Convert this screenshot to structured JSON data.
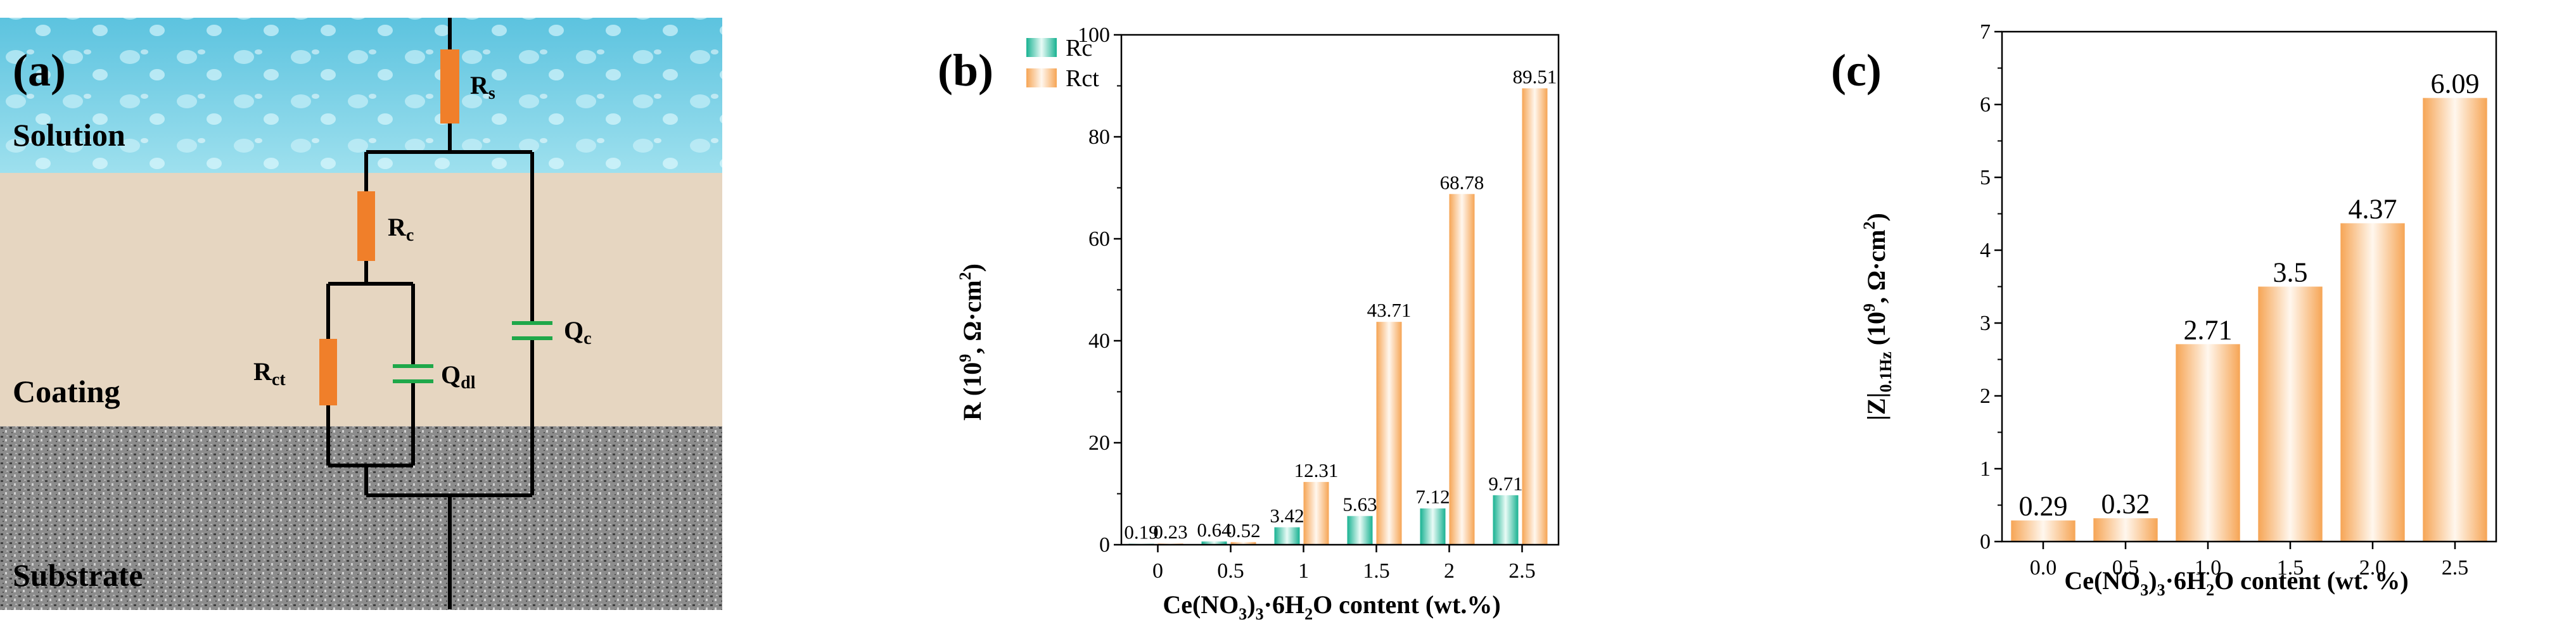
{
  "panel_a": {
    "letter": "(a)",
    "layers": {
      "solution": "Solution",
      "coating": "Coating",
      "substrate": "Substrate"
    },
    "elements": {
      "rs_main": "R",
      "rs_sub": "s",
      "rc_main": "R",
      "rc_sub": "c",
      "rct_main": "R",
      "rct_sub": "ct",
      "qdl_main": "Q",
      "qdl_sub": "dl",
      "qc_main": "Q",
      "qc_sub": "c"
    },
    "colors": {
      "solution": "#7fd3e6",
      "coating": "#e8d9c4",
      "substrate": "#9a9a9a",
      "resistor": "#f07f2a",
      "capacitor": "#1fa84a"
    }
  },
  "chart_data": [
    {
      "panel": "(b)",
      "type": "bar",
      "categories": [
        "0",
        "0.5",
        "1",
        "1.5",
        "2",
        "2.5"
      ],
      "series": [
        {
          "name": "Rc",
          "values": [
            0.19,
            0.64,
            3.42,
            5.63,
            7.12,
            9.71
          ],
          "labels": [
            "0.19",
            "0.64",
            "3.42",
            "5.63",
            "7.12",
            "9.71"
          ],
          "color": "#2dbfa3"
        },
        {
          "name": "Rct",
          "values": [
            0.23,
            0.52,
            12.31,
            43.71,
            68.78,
            89.51
          ],
          "labels": [
            "0.23",
            "0.52",
            "12.31",
            "43.71",
            "68.78",
            "89.51"
          ],
          "color": "#f5b26b"
        }
      ],
      "yticks": [
        "0",
        "20",
        "40",
        "60",
        "80",
        "100"
      ],
      "ylim": [
        0,
        100
      ],
      "ylabel": {
        "pre": "R (10",
        "sup": "9",
        "post": ", Ω·cm",
        "sup2": "2",
        "end": ")"
      },
      "xlabel": {
        "pre": "Ce(NO",
        "sub1": "3",
        "mid": ")",
        "sub2": "3",
        "post": "·6H",
        "sub3": "2",
        "end": "O content (wt.%)"
      },
      "legend_position": "top-left"
    },
    {
      "panel": "(c)",
      "type": "bar",
      "categories": [
        "0.0",
        "0.5",
        "1.0",
        "1.5",
        "2.0",
        "2.5"
      ],
      "series": [
        {
          "name": "|Z|0.1Hz",
          "values": [
            0.29,
            0.32,
            2.71,
            3.5,
            4.37,
            6.09
          ],
          "labels": [
            "0.29",
            "0.32",
            "2.71",
            "3.5",
            "4.37",
            "6.09"
          ],
          "color": "#f5b26b"
        }
      ],
      "yticks": [
        "0",
        "1",
        "2",
        "3",
        "4",
        "5",
        "6",
        "7"
      ],
      "ylim": [
        0,
        7
      ],
      "ylabel": {
        "pre": "|Z|",
        "sub": "0.1Hz",
        "mid": " (10",
        "sup": "9",
        "post": ", Ω·cm",
        "sup2": "2",
        "end": ")"
      },
      "xlabel": {
        "pre": "Ce(NO",
        "sub1": "3",
        "mid": ")",
        "sub2": "3",
        "post": "·6H",
        "sub3": "2",
        "end": "O content (wt. %)"
      }
    }
  ]
}
